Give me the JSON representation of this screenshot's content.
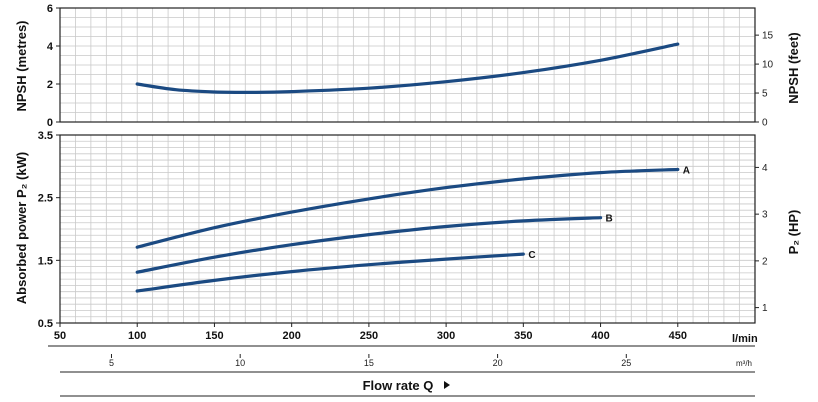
{
  "chart_data": [
    {
      "type": "line",
      "ylabel": "NPSH (metres)",
      "ylabel_right": "NPSH (feet)",
      "xlim": [
        50,
        500
      ],
      "ylim": [
        0,
        6
      ],
      "ylim_right_ticks": [
        0,
        5,
        10,
        15
      ],
      "yticks": [
        "0",
        "2",
        "4",
        "6"
      ],
      "yticks_right": [
        "0",
        "5",
        "10",
        "15"
      ],
      "grid": true,
      "series": [
        {
          "x": [
            100,
            125,
            150,
            175,
            200,
            250,
            300,
            350,
            400,
            450
          ],
          "y": [
            2.0,
            1.7,
            1.58,
            1.56,
            1.6,
            1.78,
            2.12,
            2.6,
            3.25,
            4.1
          ]
        }
      ]
    },
    {
      "type": "line",
      "ylabel": "Absorbed power  P₂  (kW)",
      "ylabel_right": "P₂  (HP)",
      "xlabel_unit_top": "l/min",
      "xlabel_unit_bottom": "m³/h",
      "xlabel": "Flow rate Q",
      "xlim": [
        50,
        500
      ],
      "ylim": [
        0.5,
        3.5
      ],
      "xticks": [
        "50",
        "100",
        "150",
        "200",
        "250",
        "300",
        "350",
        "400",
        "450"
      ],
      "xticks_m3h": [
        "5",
        "10",
        "15",
        "20",
        "25"
      ],
      "yticks": [
        "0.5",
        "1.5",
        "2.5",
        "3.5"
      ],
      "yticks_right": [
        "1",
        "2",
        "3",
        "4"
      ],
      "grid": true,
      "series": [
        {
          "name": "A",
          "x": [
            100,
            150,
            200,
            250,
            300,
            350,
            400,
            450
          ],
          "y": [
            1.71,
            2.02,
            2.27,
            2.48,
            2.66,
            2.8,
            2.9,
            2.95
          ]
        },
        {
          "name": "B",
          "x": [
            100,
            150,
            200,
            250,
            300,
            350,
            400
          ],
          "y": [
            1.31,
            1.55,
            1.75,
            1.91,
            2.04,
            2.13,
            2.18
          ]
        },
        {
          "name": "C",
          "x": [
            100,
            150,
            200,
            250,
            300,
            350
          ],
          "y": [
            1.01,
            1.18,
            1.32,
            1.43,
            1.52,
            1.6
          ]
        }
      ]
    }
  ],
  "colors": {
    "curve": "#1b4a82"
  }
}
